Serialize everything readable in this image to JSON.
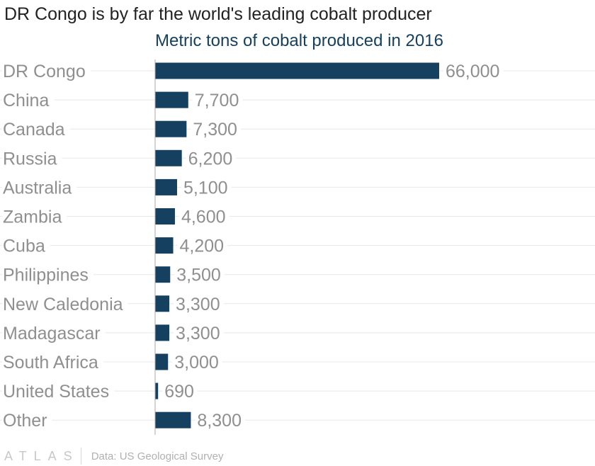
{
  "colors": {
    "bar": "#16405f",
    "subtitle": "#16405f",
    "label": "#8f8f8f",
    "gridline": "#e8e8e8",
    "axis": "#a8a8a8"
  },
  "title": "DR Congo is by far the world's leading cobalt producer",
  "subtitle": "Metric tons of cobalt produced in 2016",
  "chart_data": {
    "type": "bar",
    "orientation": "horizontal",
    "title": "DR Congo is by far the world's leading cobalt producer",
    "subtitle": "Metric tons of cobalt produced in 2016",
    "categories": [
      "DR Congo",
      "China",
      "Canada",
      "Russia",
      "Australia",
      "Zambia",
      "Cuba",
      "Philippines",
      "New Caledonia",
      "Madagascar",
      "South Africa",
      "United States",
      "Other"
    ],
    "values": [
      66000,
      7700,
      7300,
      6200,
      5100,
      4600,
      4200,
      3500,
      3300,
      3300,
      3000,
      690,
      8300
    ],
    "value_labels": [
      "66,000",
      "7,700",
      "7,300",
      "6,200",
      "5,100",
      "4,600",
      "4,200",
      "3,500",
      "3,300",
      "3,300",
      "3,000",
      "690",
      "8,300"
    ],
    "xlim": [
      0,
      66000
    ],
    "grid": true
  },
  "footer": {
    "logo": "ATLAS",
    "source": "Data: US Geological Survey"
  }
}
